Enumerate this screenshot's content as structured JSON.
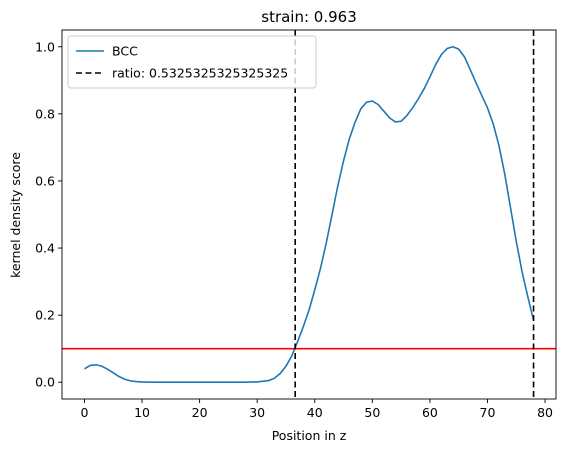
{
  "chart_data": {
    "type": "line",
    "title": "strain: 0.963",
    "xlabel": "Position in z",
    "ylabel": "kernel density score",
    "xlim": [
      -3.9,
      81.9
    ],
    "ylim": [
      -0.05,
      1.05
    ],
    "xticks": [
      0,
      10,
      20,
      30,
      40,
      50,
      60,
      70,
      80
    ],
    "yticks": [
      0.0,
      0.2,
      0.4,
      0.6,
      0.8,
      1.0
    ],
    "xtick_labels": [
      "0",
      "10",
      "20",
      "30",
      "40",
      "50",
      "60",
      "70",
      "80"
    ],
    "ytick_labels": [
      "0.0",
      "0.2",
      "0.4",
      "0.6",
      "0.8",
      "1.0"
    ],
    "grid": false,
    "legend_position": "upper-left",
    "series": [
      {
        "name": "BCC",
        "color": "#1f77b4",
        "style": "solid",
        "x": [
          0,
          1,
          2,
          3,
          4,
          5,
          6,
          7,
          8,
          9,
          10,
          12,
          15,
          20,
          25,
          28,
          30,
          32,
          33,
          34,
          35,
          36,
          37,
          38,
          39,
          40,
          41,
          42,
          43,
          44,
          45,
          46,
          47,
          48,
          49,
          50,
          51,
          52,
          53,
          54,
          55,
          56,
          57,
          58,
          59,
          60,
          61,
          62,
          63,
          64,
          65,
          66,
          67,
          68,
          69,
          70,
          71,
          72,
          73,
          74,
          75,
          76,
          77,
          78
        ],
        "y": [
          0.04,
          0.05,
          0.052,
          0.048,
          0.039,
          0.028,
          0.017,
          0.009,
          0.004,
          0.002,
          0.001,
          0.0,
          0.0,
          0.0,
          0.0,
          0.0,
          0.001,
          0.005,
          0.012,
          0.026,
          0.048,
          0.078,
          0.12,
          0.165,
          0.215,
          0.275,
          0.34,
          0.415,
          0.5,
          0.585,
          0.66,
          0.725,
          0.775,
          0.815,
          0.835,
          0.838,
          0.828,
          0.808,
          0.788,
          0.776,
          0.778,
          0.795,
          0.818,
          0.845,
          0.875,
          0.91,
          0.947,
          0.977,
          0.995,
          1.0,
          0.993,
          0.97,
          0.932,
          0.893,
          0.855,
          0.818,
          0.77,
          0.705,
          0.62,
          0.52,
          0.42,
          0.33,
          0.255,
          0.185
        ]
      }
    ],
    "hlines": [
      {
        "y": 0.1,
        "color": "#ff0000",
        "style": "solid"
      }
    ],
    "vlines": [
      {
        "name": "ratio: 0.5325325325325325",
        "x": 36.6,
        "color": "#000000",
        "style": "dashed"
      },
      {
        "x": 78.0,
        "color": "#000000",
        "style": "dashed"
      }
    ],
    "legend": [
      {
        "label": "BCC",
        "color": "#1f77b4",
        "style": "solid"
      },
      {
        "label": "ratio: 0.5325325325325325",
        "color": "#000000",
        "style": "dashed"
      }
    ]
  }
}
